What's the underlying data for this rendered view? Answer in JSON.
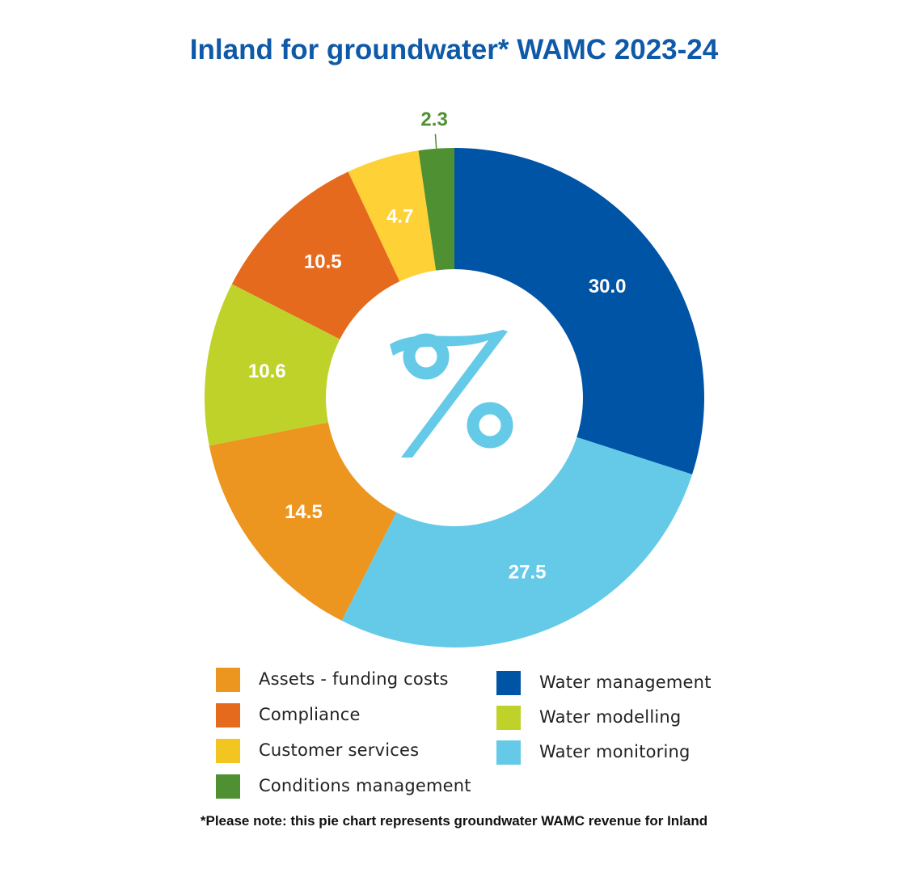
{
  "title": "Inland for groundwater* WAMC 2023-24",
  "center_icon": "percent-icon",
  "footnote": "*Please note: this pie chart represents groundwater WAMC revenue for Inland",
  "chart_data": {
    "type": "pie",
    "title": "Inland for groundwater* WAMC 2023-24",
    "donut": true,
    "slices": [
      {
        "label": "Water management",
        "value": 30.0,
        "display": "30.0",
        "color": "#0054a6"
      },
      {
        "label": "Water monitoring",
        "value": 27.5,
        "display": "27.5",
        "color": "#65cae8"
      },
      {
        "label": "Assets - funding costs",
        "value": 14.5,
        "display": "14.5",
        "color": "#ec9620"
      },
      {
        "label": "Water modelling",
        "value": 10.6,
        "display": "10.6",
        "color": "#bfd22a"
      },
      {
        "label": "Compliance",
        "value": 10.5,
        "display": "10.5",
        "color": "#e66a1e"
      },
      {
        "label": "Customer services",
        "value": 4.7,
        "display": "4.7",
        "color": "#fed136"
      },
      {
        "label": "Conditions management",
        "value": 2.3,
        "display": "2.3",
        "color": "#4f9132"
      }
    ],
    "legend_left": [
      {
        "label": "Assets - funding costs",
        "color": "#ec9620"
      },
      {
        "label": "Compliance",
        "color": "#e66a1e"
      },
      {
        "label": "Customer services",
        "color": "#f2c520"
      },
      {
        "label": "Conditions management",
        "color": "#4f9132"
      }
    ],
    "legend_right": [
      {
        "label": "Water management",
        "color": "#0054a6"
      },
      {
        "label": "Water modelling",
        "color": "#bfd22a"
      },
      {
        "label": "Water monitoring",
        "color": "#65cae8"
      }
    ],
    "legend_position": "bottom"
  }
}
